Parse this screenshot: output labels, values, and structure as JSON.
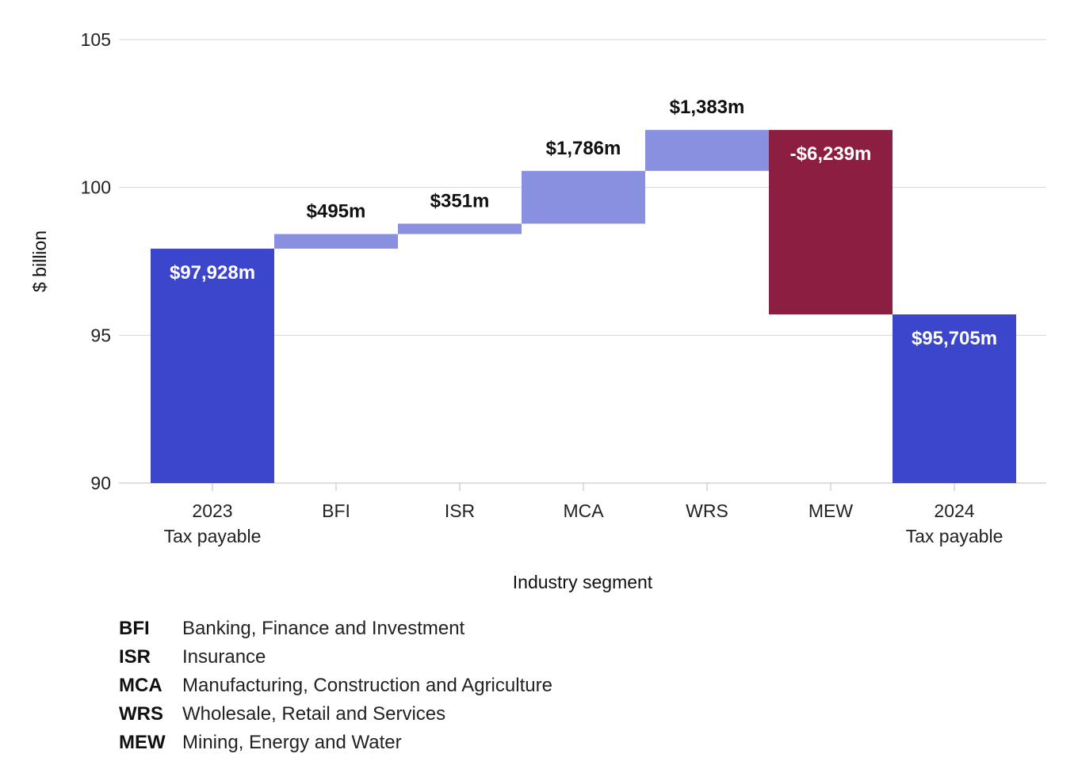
{
  "chart_data": {
    "type": "waterfall",
    "ylabel": "$ billion",
    "xlabel": "Industry segment",
    "ylim": [
      90,
      105
    ],
    "yticks": [
      90,
      95,
      100,
      105
    ],
    "grid": true,
    "bars": [
      {
        "line1": "2023",
        "line2": "Tax payable",
        "kind": "total",
        "start": 90,
        "end": 97.928,
        "label": "$97,928m"
      },
      {
        "line1": "BFI",
        "line2": "",
        "kind": "increase",
        "start": 97.928,
        "end": 98.423,
        "label": "$495m"
      },
      {
        "line1": "ISR",
        "line2": "",
        "kind": "increase",
        "start": 98.423,
        "end": 98.774,
        "label": "$351m"
      },
      {
        "line1": "MCA",
        "line2": "",
        "kind": "increase",
        "start": 98.774,
        "end": 100.56,
        "label": "$1,786m"
      },
      {
        "line1": "WRS",
        "line2": "",
        "kind": "increase",
        "start": 100.56,
        "end": 101.943,
        "label": "$1,383m"
      },
      {
        "line1": "MEW",
        "line2": "",
        "kind": "decrease",
        "start": 101.943,
        "end": 95.705,
        "label": "-$6,239m"
      },
      {
        "line1": "2024",
        "line2": "Tax payable",
        "kind": "total",
        "start": 90,
        "end": 95.705,
        "label": "$95,705m"
      }
    ],
    "colors": {
      "total": "#3b46cc",
      "increase": "#8a90e0",
      "decrease": "#8b1e41"
    }
  },
  "legend": [
    {
      "abbr": "BFI",
      "full": "Banking, Finance and Investment"
    },
    {
      "abbr": "ISR",
      "full": "Insurance"
    },
    {
      "abbr": "MCA",
      "full": "Manufacturing, Construction and Agriculture"
    },
    {
      "abbr": "WRS",
      "full": "Wholesale, Retail and Services"
    },
    {
      "abbr": "MEW",
      "full": "Mining, Energy and Water"
    }
  ]
}
